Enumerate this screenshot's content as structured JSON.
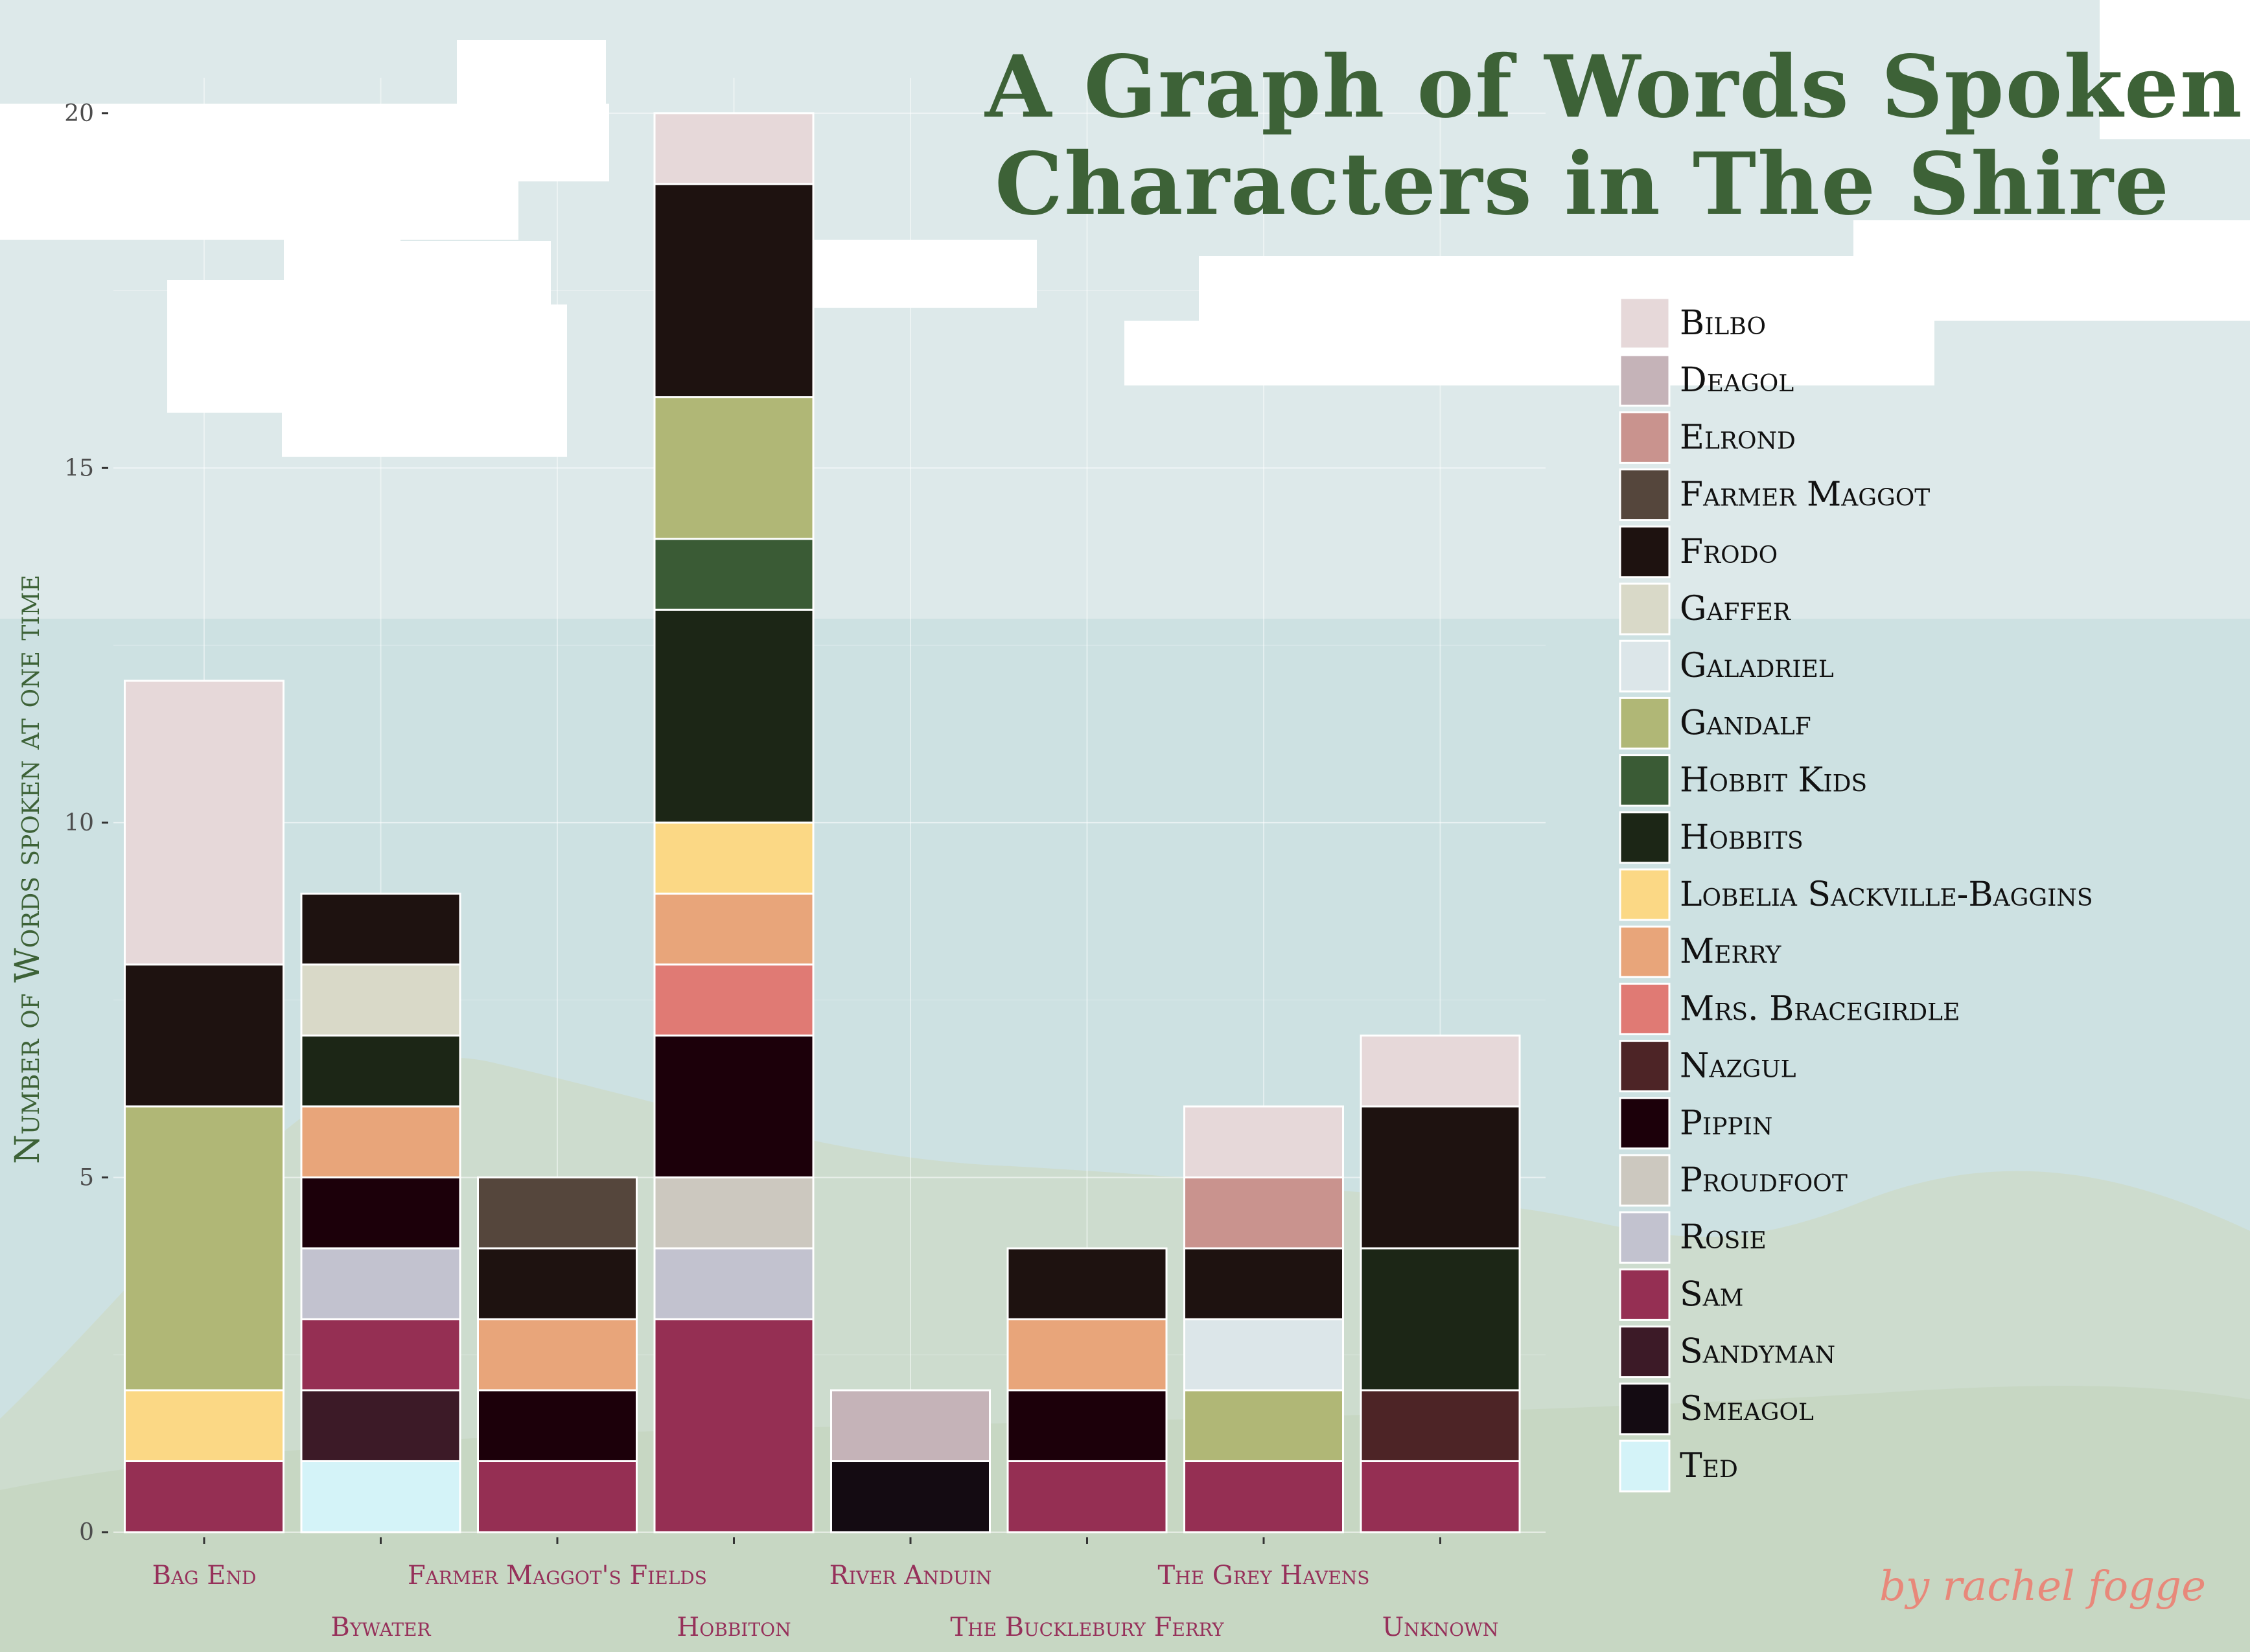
{
  "chart_data": {
    "type": "bar",
    "stacked": true,
    "title": "A Graph of Words Spoken By Characters in The Shire",
    "xlabel": "",
    "ylabel": "Number of Words spoken at one time",
    "ylim": [
      0,
      20.5
    ],
    "yticks": [
      0,
      5,
      10,
      15,
      20
    ],
    "grid": true,
    "legend_position": "right",
    "categories": [
      "Bag End",
      "Bywater",
      "Farmer Maggot's Fields",
      "Hobbiton",
      "River Anduin",
      "The Bucklebury Ferry",
      "The Grey Havens",
      "Unknown"
    ],
    "series": [
      {
        "name": "Bilbo",
        "color": "#e6d8d9",
        "values": [
          4,
          0,
          0,
          1,
          0,
          0,
          1,
          1
        ]
      },
      {
        "name": "Deagol",
        "color": "#c5b3b8",
        "values": [
          0,
          0,
          0,
          0,
          1,
          0,
          0,
          0
        ]
      },
      {
        "name": "Elrond",
        "color": "#c9938e",
        "values": [
          0,
          0,
          0,
          0,
          0,
          0,
          1,
          0
        ]
      },
      {
        "name": "Farmer Maggot",
        "color": "#55463c",
        "values": [
          0,
          0,
          1,
          0,
          0,
          0,
          0,
          0
        ]
      },
      {
        "name": "Frodo",
        "color": "#1e1210",
        "values": [
          2,
          1,
          1,
          3,
          0,
          1,
          1,
          2
        ]
      },
      {
        "name": "Gaffer",
        "color": "#d9d9c8",
        "values": [
          0,
          1,
          0,
          0,
          0,
          0,
          0,
          0
        ]
      },
      {
        "name": "Galadriel",
        "color": "#dce6e9",
        "values": [
          0,
          0,
          0,
          0,
          0,
          0,
          1,
          0
        ]
      },
      {
        "name": "Gandalf",
        "color": "#b0b776",
        "values": [
          4,
          0,
          0,
          2,
          0,
          0,
          1,
          0
        ]
      },
      {
        "name": "Hobbit Kids",
        "color": "#3a5b35",
        "values": [
          0,
          0,
          0,
          1,
          0,
          0,
          0,
          0
        ]
      },
      {
        "name": "Hobbits",
        "color": "#1c2616",
        "values": [
          0,
          1,
          0,
          3,
          0,
          0,
          0,
          2
        ]
      },
      {
        "name": "Lobelia Sackville-Baggins",
        "color": "#fbd885",
        "values": [
          1,
          0,
          0,
          1,
          0,
          0,
          0,
          0
        ]
      },
      {
        "name": "Merry",
        "color": "#e8a57a",
        "values": [
          0,
          1,
          1,
          1,
          0,
          1,
          0,
          0
        ]
      },
      {
        "name": "Mrs. Bracegirdle",
        "color": "#e07a74",
        "values": [
          0,
          0,
          0,
          1,
          0,
          0,
          0,
          0
        ]
      },
      {
        "name": "Nazgul",
        "color": "#4d2426",
        "values": [
          0,
          0,
          0,
          0,
          0,
          0,
          0,
          1
        ]
      },
      {
        "name": "Pippin",
        "color": "#1c000a",
        "values": [
          0,
          1,
          1,
          2,
          0,
          1,
          0,
          0
        ]
      },
      {
        "name": "Proudfoot",
        "color": "#ccc8bf",
        "values": [
          0,
          0,
          0,
          1,
          0,
          0,
          0,
          0
        ]
      },
      {
        "name": "Rosie",
        "color": "#c2c2cf",
        "values": [
          0,
          1,
          0,
          1,
          0,
          0,
          0,
          0
        ]
      },
      {
        "name": "Sam",
        "color": "#952f53",
        "values": [
          1,
          1,
          1,
          3,
          0,
          1,
          1,
          1
        ]
      },
      {
        "name": "Sandyman",
        "color": "#3c1a27",
        "values": [
          0,
          1,
          0,
          0,
          0,
          0,
          0,
          0
        ]
      },
      {
        "name": "Smeagol",
        "color": "#140b12",
        "values": [
          0,
          0,
          0,
          0,
          1,
          0,
          0,
          0
        ]
      },
      {
        "name": "Ted",
        "color": "#d4f3f8",
        "values": [
          0,
          1,
          0,
          0,
          0,
          0,
          0,
          0
        ]
      }
    ]
  },
  "title_lines": [
    "A Graph of Words Spoken By",
    "Characters in The Shire"
  ],
  "signature": "by rachel fogge",
  "colors": {
    "title": "#3d6237",
    "x_tick_labels": "#96305a",
    "sky_light": "#dde9ea",
    "sky_lower": "#cde1e2",
    "hills": "#c8d9c8",
    "signature": "#e8887a"
  }
}
